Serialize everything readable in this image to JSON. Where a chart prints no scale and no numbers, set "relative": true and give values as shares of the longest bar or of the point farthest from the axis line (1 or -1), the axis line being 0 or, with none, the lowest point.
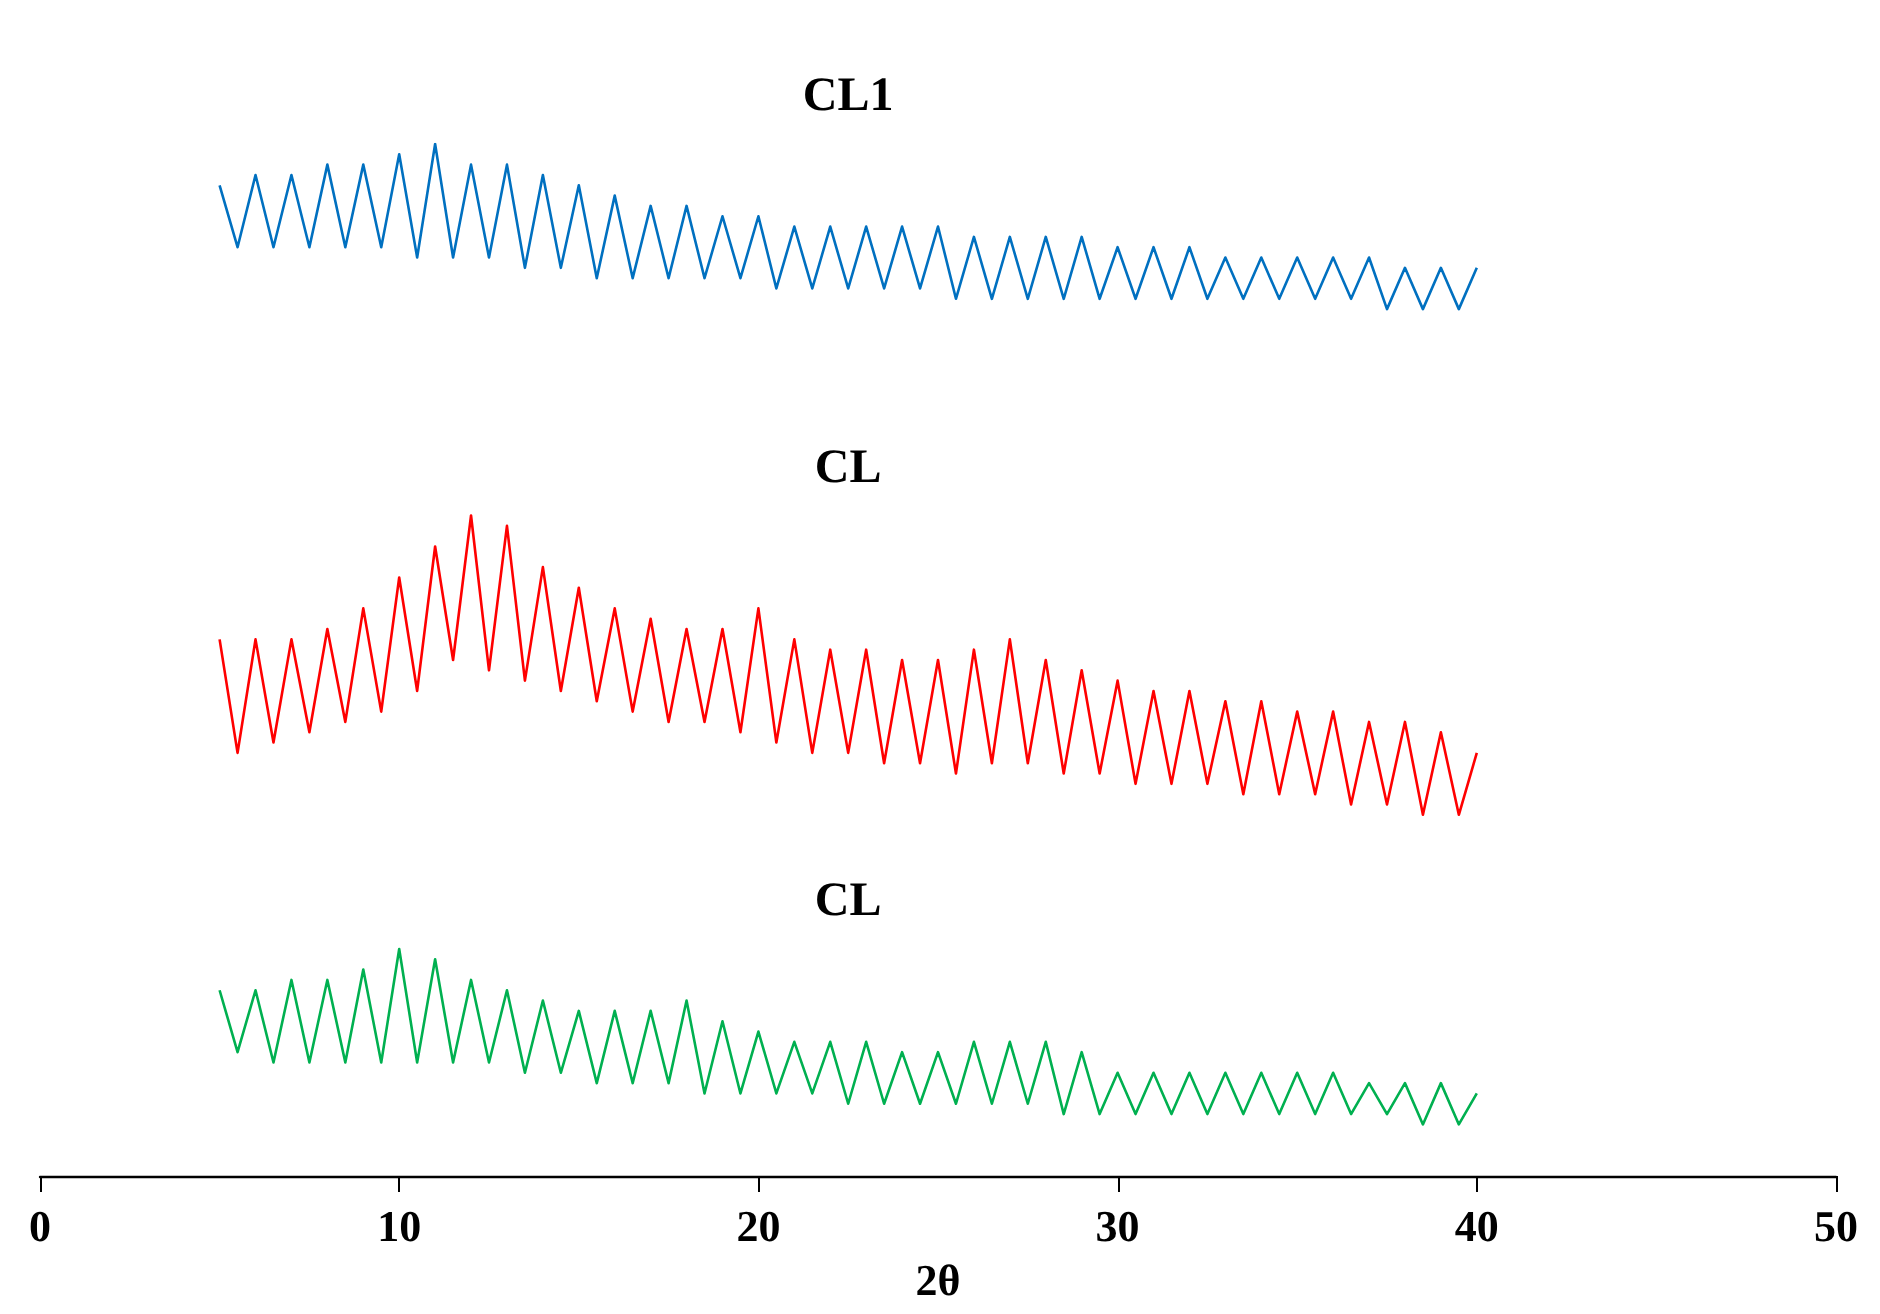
{
  "chart_data": {
    "type": "line",
    "relative": true,
    "xlabel": "2θ",
    "xlim": [
      0,
      50
    ],
    "xticks": [
      0,
      10,
      20,
      30,
      40,
      50
    ],
    "grid": false,
    "legend": false,
    "marker": "none",
    "line_style": "solid",
    "x": [
      5,
      5.5,
      6,
      6.5,
      7,
      7.5,
      8,
      8.5,
      9,
      9.5,
      10,
      10.5,
      11,
      11.5,
      12,
      12.5,
      13,
      13.5,
      14,
      14.5,
      15,
      15.5,
      16,
      16.5,
      17,
      17.5,
      18,
      18.5,
      19,
      19.5,
      20,
      20.5,
      21,
      21.5,
      22,
      22.5,
      23,
      23.5,
      24,
      24.5,
      25,
      25.5,
      26,
      26.5,
      27,
      27.5,
      28,
      28.5,
      29,
      29.5,
      30,
      30.5,
      31,
      31.5,
      32,
      32.5,
      33,
      33.5,
      34,
      34.5,
      35,
      35.5,
      36,
      36.5,
      37,
      37.5,
      38,
      38.5,
      39,
      39.5,
      40
    ],
    "series": [
      {
        "name": "CL1",
        "color": "#0070c0",
        "values": [
          0.96,
          0.9,
          0.97,
          0.9,
          0.97,
          0.9,
          0.98,
          0.9,
          0.98,
          0.9,
          0.99,
          0.89,
          1.0,
          0.89,
          0.98,
          0.89,
          0.98,
          0.88,
          0.97,
          0.88,
          0.96,
          0.87,
          0.95,
          0.87,
          0.94,
          0.87,
          0.94,
          0.87,
          0.93,
          0.87,
          0.93,
          0.86,
          0.92,
          0.86,
          0.92,
          0.86,
          0.92,
          0.86,
          0.92,
          0.86,
          0.92,
          0.85,
          0.91,
          0.85,
          0.91,
          0.85,
          0.91,
          0.85,
          0.91,
          0.85,
          0.9,
          0.85,
          0.9,
          0.85,
          0.9,
          0.85,
          0.89,
          0.85,
          0.89,
          0.85,
          0.89,
          0.85,
          0.89,
          0.85,
          0.89,
          0.84,
          0.88,
          0.84,
          0.88,
          0.84,
          0.88
        ]
      },
      {
        "name": "CL",
        "color": "#ff0000",
        "values": [
          0.52,
          0.41,
          0.52,
          0.42,
          0.52,
          0.43,
          0.53,
          0.44,
          0.55,
          0.45,
          0.58,
          0.47,
          0.61,
          0.5,
          0.64,
          0.49,
          0.63,
          0.48,
          0.59,
          0.47,
          0.57,
          0.46,
          0.55,
          0.45,
          0.54,
          0.44,
          0.53,
          0.44,
          0.53,
          0.43,
          0.55,
          0.42,
          0.52,
          0.41,
          0.51,
          0.41,
          0.51,
          0.4,
          0.5,
          0.4,
          0.5,
          0.39,
          0.51,
          0.4,
          0.52,
          0.4,
          0.5,
          0.39,
          0.49,
          0.39,
          0.48,
          0.38,
          0.47,
          0.38,
          0.47,
          0.38,
          0.46,
          0.37,
          0.46,
          0.37,
          0.45,
          0.37,
          0.45,
          0.36,
          0.44,
          0.36,
          0.44,
          0.35,
          0.43,
          0.35,
          0.41
        ]
      },
      {
        "name": "CL",
        "color": "#00b050",
        "values": [
          0.18,
          0.12,
          0.18,
          0.11,
          0.19,
          0.11,
          0.19,
          0.11,
          0.2,
          0.11,
          0.22,
          0.11,
          0.21,
          0.11,
          0.19,
          0.11,
          0.18,
          0.1,
          0.17,
          0.1,
          0.16,
          0.09,
          0.16,
          0.09,
          0.16,
          0.09,
          0.17,
          0.08,
          0.15,
          0.08,
          0.14,
          0.08,
          0.13,
          0.08,
          0.13,
          0.07,
          0.13,
          0.07,
          0.12,
          0.07,
          0.12,
          0.07,
          0.13,
          0.07,
          0.13,
          0.07,
          0.13,
          0.06,
          0.12,
          0.06,
          0.1,
          0.06,
          0.1,
          0.06,
          0.1,
          0.06,
          0.1,
          0.06,
          0.1,
          0.06,
          0.1,
          0.06,
          0.1,
          0.06,
          0.09,
          0.06,
          0.09,
          0.05,
          0.09,
          0.05,
          0.08
        ]
      }
    ]
  }
}
